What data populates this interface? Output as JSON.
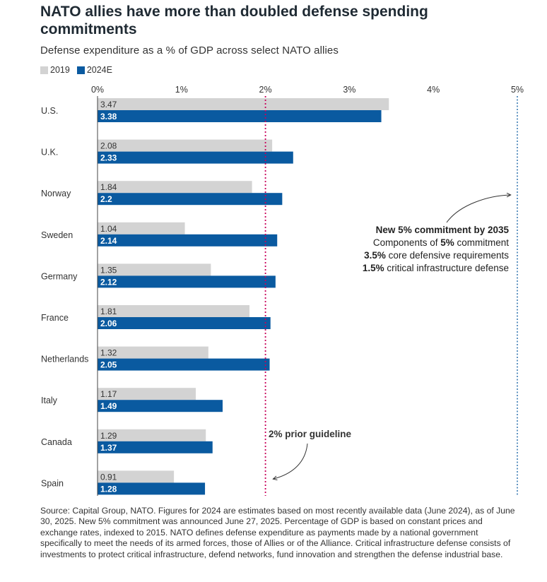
{
  "title": "NATO allies have more than doubled defense spending commitments",
  "subtitle": "Defense expenditure as a % of GDP across select NATO allies",
  "legend": {
    "items": [
      {
        "label": "2019",
        "color": "#d3d3d3"
      },
      {
        "label": "2024E",
        "color": "#0a5aa0"
      }
    ]
  },
  "chart_data": {
    "type": "bar",
    "orientation": "horizontal",
    "categories": [
      "U.S.",
      "U.K.",
      "Norway",
      "Sweden",
      "Germany",
      "France",
      "Netherlands",
      "Italy",
      "Canada",
      "Spain"
    ],
    "series": [
      {
        "name": "2019",
        "color": "#d3d3d3",
        "values": [
          3.47,
          2.08,
          1.84,
          1.04,
          1.35,
          1.81,
          1.32,
          1.17,
          1.29,
          0.91
        ]
      },
      {
        "name": "2024E",
        "color": "#0a5aa0",
        "values": [
          3.38,
          2.33,
          2.2,
          2.14,
          2.12,
          2.06,
          2.05,
          1.49,
          1.37,
          1.28
        ]
      }
    ],
    "data_labels_2019": [
      "3.47",
      "2.08",
      "1.84",
      "1.04",
      "1.35",
      "1.81",
      "1.32",
      "1.17",
      "1.29",
      "0.91"
    ],
    "data_labels_2024": [
      "3.38",
      "2.33",
      "2.2",
      "2.14",
      "2.12",
      "2.06",
      "2.05",
      "1.49",
      "1.37",
      "1.28"
    ],
    "x_ticks": [
      0,
      1,
      2,
      3,
      4,
      5
    ],
    "x_tick_labels": [
      "0%",
      "1%",
      "2%",
      "3%",
      "4%",
      "5%"
    ],
    "xlim": [
      0,
      5
    ],
    "legend_position": "top-left",
    "grid": false,
    "reference_lines": [
      {
        "value": 2,
        "color": "#c8005a",
        "style": "dotted"
      },
      {
        "value": 5,
        "color": "#0a5aa0",
        "style": "dotted"
      }
    ],
    "annotations": {
      "guideline": "2% prior guideline",
      "commitment_title": "New 5% commitment by 2035",
      "components_prefix": "Components of ",
      "components_bold": "5%",
      "components_suffix": " commitment",
      "core_bold": "3.5%",
      "core_text": " core defensive requirements",
      "infra_bold": "1.5%",
      "infra_text": " critical infrastructure defense"
    }
  },
  "source": "Source: Capital Group, NATO. Figures for 2024 are estimates based on most recently available data (June 2024), as of June 30, 2025. New 5% commitment was announced June 27, 2025. Percentage of GDP is based on constant prices and exchange rates, indexed to 2015. NATO defines defense expenditure as payments made by a national government specifically to meet the needs of its armed forces, those of Allies or of the Alliance. Critical infrastructure defense consists of investments to protect critical infrastructure, defend networks, fund innovation and strengthen the defense industrial base."
}
